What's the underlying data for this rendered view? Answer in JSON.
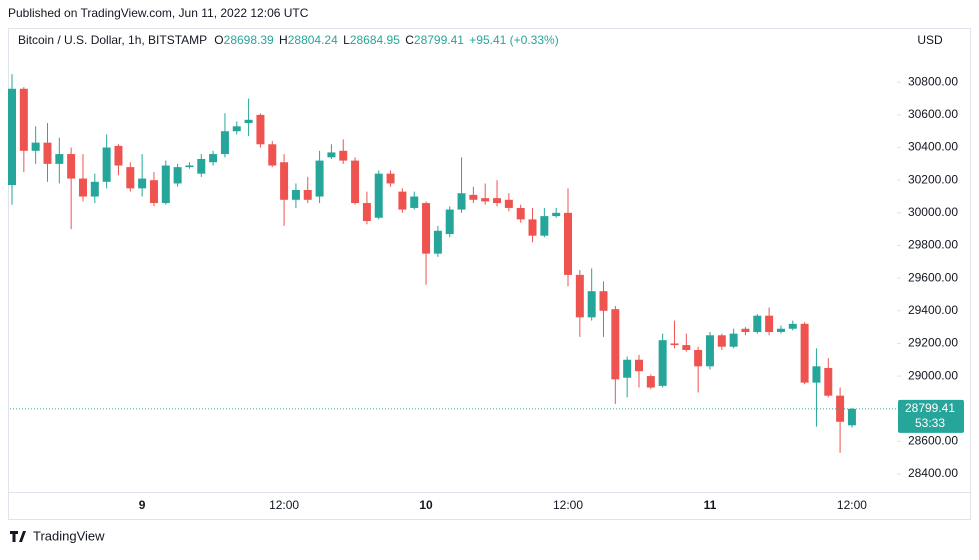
{
  "header": {
    "published": "Published on TradingView.com, Jun 11, 2022 12:06 UTC"
  },
  "footer": {
    "logo": "TradingView"
  },
  "chart_data": {
    "type": "candlestick",
    "symbol": "Bitcoin / U.S. Dollar, 1h, BITSTAMP",
    "legend_labels": {
      "open": "O",
      "high": "H",
      "low": "L",
      "close": "C"
    },
    "legend_change": "+95.41 (+0.33%)",
    "currency": "USD",
    "countdown": "53:33",
    "up_color": "#26a69a",
    "down_color": "#ef5350",
    "categories": [
      null,
      null,
      null,
      null,
      null,
      null,
      null,
      null,
      null,
      null,
      null,
      "9",
      null,
      null,
      null,
      null,
      null,
      null,
      null,
      null,
      null,
      null,
      null,
      "12:00",
      null,
      null,
      null,
      null,
      null,
      null,
      null,
      null,
      null,
      null,
      null,
      "10",
      null,
      null,
      null,
      null,
      null,
      null,
      null,
      null,
      null,
      null,
      null,
      "12:00",
      null,
      null,
      null,
      null,
      null,
      null,
      null,
      null,
      null,
      null,
      null,
      "11",
      null,
      null,
      null,
      null,
      null,
      null,
      null,
      null,
      null,
      null,
      null,
      "12:00"
    ],
    "open": [
      30170,
      30760,
      30380,
      30430,
      30300,
      30360,
      30210,
      30100,
      30190,
      30410,
      30280,
      30150,
      30200,
      30060,
      30180,
      30280,
      30240,
      30310,
      30360,
      30500,
      30550,
      30600,
      30420,
      30310,
      30080,
      30140,
      30100,
      30340,
      30380,
      30320,
      30060,
      29970,
      30240,
      30130,
      30030,
      30060,
      29750,
      29870,
      30020,
      30110,
      30090,
      30090,
      30080,
      30030,
      29960,
      29860,
      29980,
      30000,
      29620,
      29360,
      29520,
      29410,
      28990,
      29100,
      29000,
      28940,
      29200,
      29190,
      29160,
      29060,
      29250,
      29180,
      29290,
      29270,
      29370,
      29270,
      29290,
      29320,
      28960,
      29050,
      28880,
      28698.39
    ],
    "high": [
      30850,
      30770,
      30530,
      30550,
      30460,
      30400,
      30360,
      30240,
      30480,
      30420,
      30310,
      30360,
      30250,
      30320,
      30300,
      30310,
      30360,
      30380,
      30610,
      30560,
      30700,
      30610,
      30440,
      30360,
      30180,
      30220,
      30380,
      30420,
      30450,
      30340,
      30130,
      30260,
      30260,
      30150,
      30130,
      30070,
      29920,
      30040,
      30340,
      30160,
      30180,
      30200,
      30120,
      30050,
      30030,
      30030,
      30030,
      30150,
      29650,
      29660,
      29580,
      29430,
      29120,
      29130,
      29010,
      29260,
      29340,
      29260,
      29180,
      29270,
      29260,
      29290,
      29300,
      29380,
      29420,
      29310,
      29340,
      29330,
      29170,
      29110,
      28930,
      28804.24
    ],
    "low": [
      30050,
      30250,
      30300,
      30190,
      30180,
      29900,
      30070,
      30060,
      30150,
      30230,
      30130,
      30100,
      30040,
      30050,
      30160,
      30270,
      30220,
      30290,
      30340,
      30480,
      30470,
      30400,
      30280,
      29920,
      30030,
      30060,
      30060,
      30330,
      30300,
      30050,
      29930,
      29960,
      30160,
      30000,
      30020,
      29560,
      29730,
      29850,
      30000,
      30060,
      30050,
      30040,
      30010,
      29940,
      29820,
      29850,
      29970,
      29550,
      29240,
      29340,
      29240,
      28830,
      28870,
      28930,
      28920,
      28930,
      29170,
      29150,
      28900,
      29040,
      29160,
      29170,
      29250,
      29260,
      29250,
      29260,
      29280,
      28950,
      28690,
      28870,
      28530,
      28684.95
    ],
    "close": [
      30760,
      30380,
      30430,
      30300,
      30360,
      30210,
      30100,
      30190,
      30400,
      30290,
      30150,
      30210,
      30060,
      30290,
      30280,
      30290,
      30330,
      30360,
      30500,
      30530,
      30570,
      30420,
      30290,
      30080,
      30140,
      30080,
      30320,
      30370,
      30320,
      30060,
      29950,
      30240,
      30180,
      30020,
      30100,
      29750,
      29890,
      30020,
      30120,
      30080,
      30070,
      30060,
      30030,
      29960,
      29860,
      29980,
      30000,
      29620,
      29360,
      29520,
      29400,
      28980,
      29100,
      29030,
      28930,
      29220,
      29190,
      29160,
      29060,
      29250,
      29180,
      29260,
      29270,
      29370,
      29270,
      29290,
      29320,
      28960,
      29060,
      28880,
      28720,
      28799.41
    ],
    "ylim": [
      28290,
      31120
    ],
    "yticks": [
      {
        "value": 28400,
        "label": "28400.00"
      },
      {
        "value": 28600,
        "label": "28600.00"
      },
      {
        "value": 28800,
        "label": "28800.00"
      },
      {
        "value": 29000,
        "label": "29000.00"
      },
      {
        "value": 29200,
        "label": "29200.00"
      },
      {
        "value": 29400,
        "label": "29400.00"
      },
      {
        "value": 29600,
        "label": "29600.00"
      },
      {
        "value": 29800,
        "label": "29800.00"
      },
      {
        "value": 30000,
        "label": "30000.00"
      },
      {
        "value": 30200,
        "label": "30200.00"
      },
      {
        "value": 30400,
        "label": "30400.00"
      },
      {
        "value": 30600,
        "label": "30600.00"
      },
      {
        "value": 30800,
        "label": "30800.00"
      }
    ],
    "grid": false
  }
}
